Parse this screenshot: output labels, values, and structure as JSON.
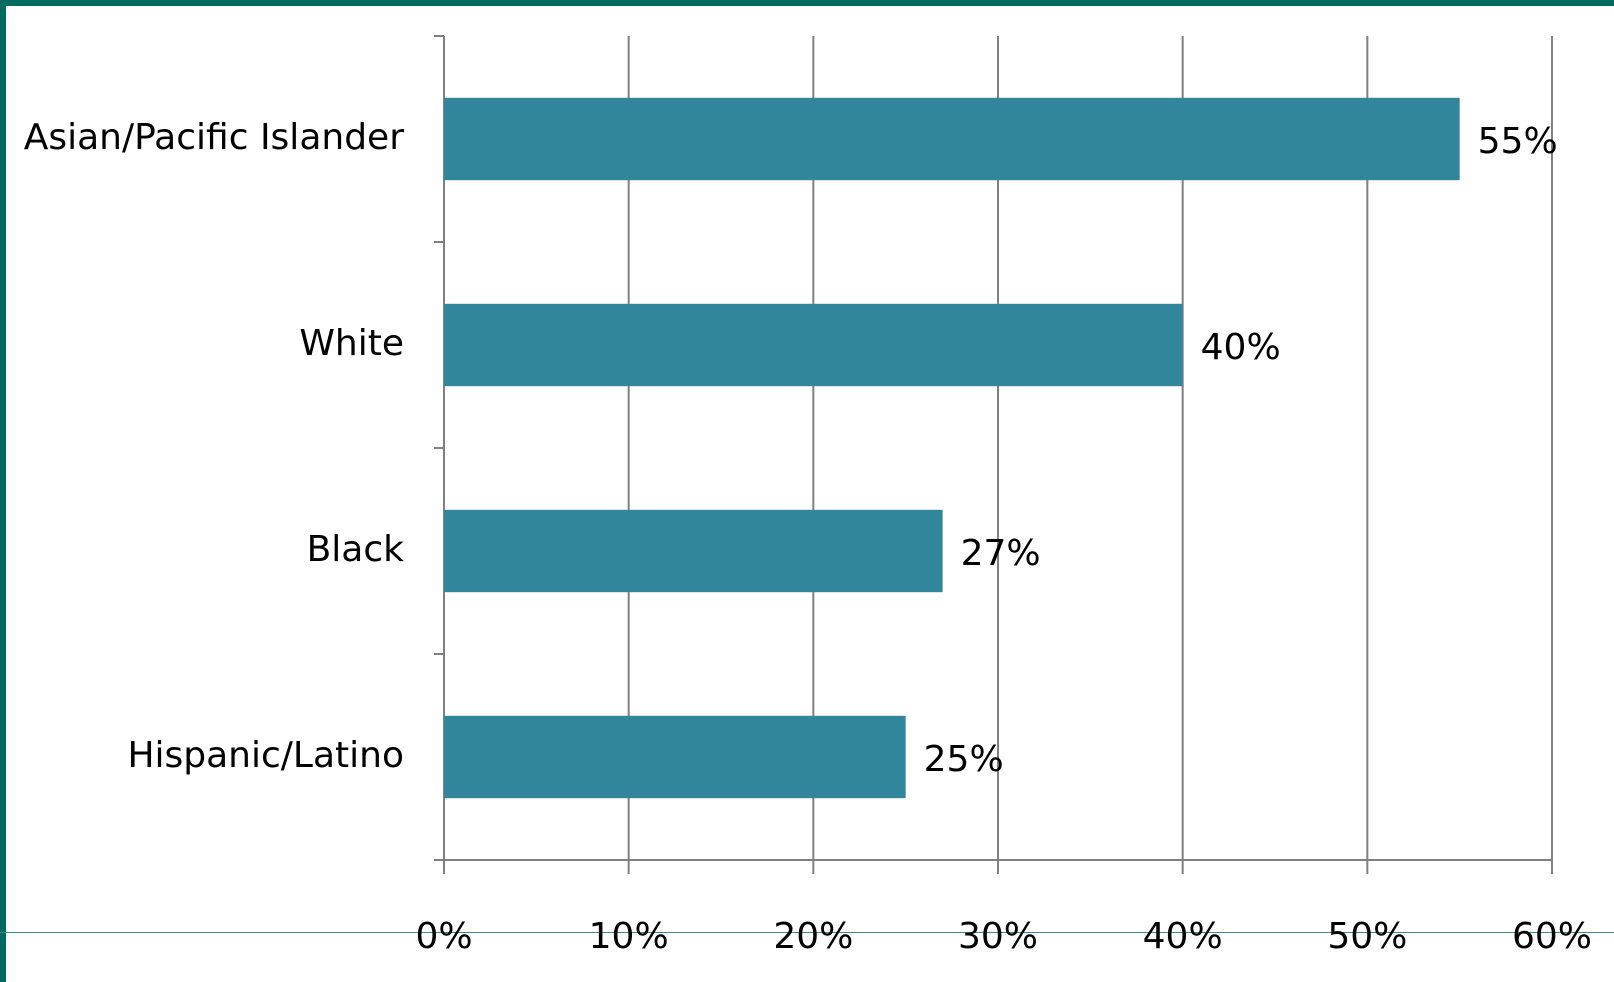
{
  "chart_data": {
    "type": "bar",
    "orientation": "horizontal",
    "categories": [
      "Asian/Pacific Islander",
      "White",
      "Black",
      "Hispanic/Latino"
    ],
    "values": [
      55,
      40,
      27,
      25
    ],
    "data_labels": [
      "55%",
      "40%",
      "27%",
      "25%"
    ],
    "xlim": [
      0,
      60
    ],
    "xticks": [
      0,
      10,
      20,
      30,
      40,
      50,
      60
    ],
    "xtick_labels": [
      "0%",
      "10%",
      "20%",
      "30%",
      "40%",
      "50%",
      "60%"
    ],
    "grid": "vertical",
    "legend": "none",
    "bar_color": "#31869b"
  },
  "colors": {
    "frame": "#006b5e",
    "gridline": "#808080"
  }
}
